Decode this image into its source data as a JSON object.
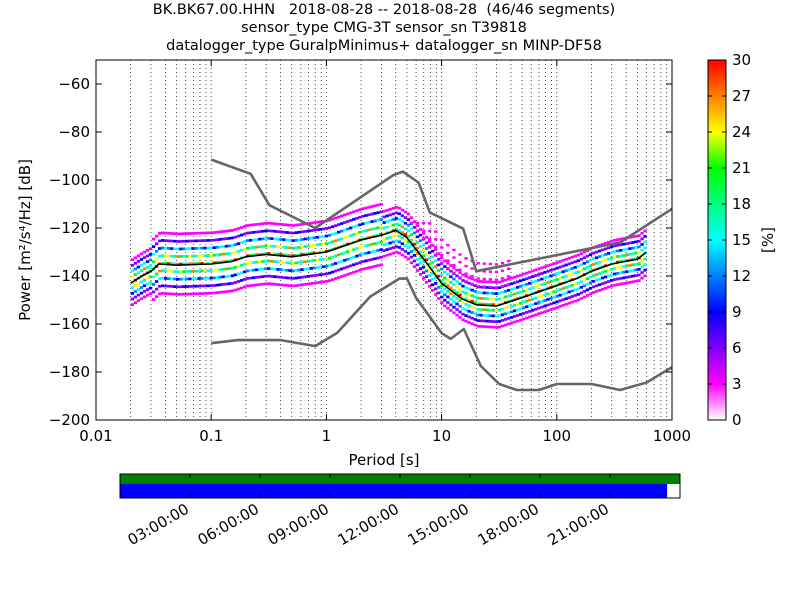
{
  "title_lines": [
    "BK.BK67.00.HHN   2018-08-28 -- 2018-08-28  (46/46 segments)",
    "sensor_type CMG-3T sensor_sn T39818",
    "datalogger_type GuralpMinimus+ datalogger_sn MINP-DF58"
  ],
  "chart_data": {
    "type": "heatmap",
    "xlabel": "Period [s]",
    "ylabel": "Power [m²/s⁴/Hz] [dB]",
    "x_scale": "log",
    "xlim": [
      0.01,
      1000
    ],
    "ylim": [
      -200,
      -50
    ],
    "x_ticks": [
      0.01,
      0.1,
      1,
      10,
      100,
      1000
    ],
    "x_tick_labels": [
      "0.01",
      "0.1",
      "1",
      "10",
      "100",
      "1000"
    ],
    "y_ticks": [
      -200,
      -180,
      -160,
      -140,
      -120,
      -100,
      -80,
      -60
    ],
    "y_tick_labels": [
      "−200",
      "−180",
      "−160",
      "−140",
      "−120",
      "−100",
      "−80",
      "−60"
    ],
    "grid": "dotted vertical",
    "colorbar": {
      "label": "[%]",
      "min": 0,
      "max": 30,
      "ticks": [
        0,
        3,
        6,
        9,
        12,
        15,
        18,
        21,
        24,
        27,
        30
      ],
      "colors": [
        "#ffffff",
        "#ff00ff",
        "#8000ff",
        "#0000ff",
        "#0080ff",
        "#00ffff",
        "#00ff80",
        "#00ff00",
        "#ffff00",
        "#ff8000",
        "#ff0000"
      ]
    },
    "series": [
      {
        "role": "new-high-noise-model",
        "color": "#666666",
        "points": [
          [
            0.1,
            -91.5
          ],
          [
            0.22,
            -97.4
          ],
          [
            0.32,
            -110.5
          ],
          [
            0.8,
            -120
          ],
          [
            3.8,
            -98
          ],
          [
            4.6,
            -96.5
          ],
          [
            6.3,
            -101
          ],
          [
            7.9,
            -113.5
          ],
          [
            15.4,
            -120.3
          ],
          [
            20,
            -138
          ],
          [
            354.8,
            -126
          ],
          [
            1000,
            -112
          ]
        ]
      },
      {
        "role": "new-low-noise-model",
        "color": "#666666",
        "points": [
          [
            0.1,
            -168
          ],
          [
            0.17,
            -166.7
          ],
          [
            0.4,
            -166.7
          ],
          [
            0.8,
            -169.2
          ],
          [
            1.24,
            -163.7
          ],
          [
            2.4,
            -148.6
          ],
          [
            4.3,
            -141.1
          ],
          [
            5,
            -141
          ],
          [
            6,
            -149
          ],
          [
            10,
            -163.8
          ],
          [
            12,
            -166.2
          ],
          [
            15.6,
            -162.1
          ],
          [
            21.9,
            -177.5
          ],
          [
            31.6,
            -185
          ],
          [
            45,
            -187.5
          ],
          [
            70,
            -187.5
          ],
          [
            100,
            -185
          ],
          [
            200,
            -185
          ],
          [
            354.8,
            -187.5
          ],
          [
            600,
            -184.4
          ],
          [
            1000,
            -178
          ]
        ]
      },
      {
        "role": "median-psd",
        "color": "#000000",
        "points": [
          [
            0.02,
            -143
          ],
          [
            0.025,
            -140
          ],
          [
            0.03,
            -138
          ],
          [
            0.035,
            -135
          ],
          [
            0.05,
            -135.5
          ],
          [
            0.1,
            -135
          ],
          [
            0.15,
            -134
          ],
          [
            0.2,
            -132
          ],
          [
            0.3,
            -131
          ],
          [
            0.5,
            -132
          ],
          [
            1,
            -130
          ],
          [
            2,
            -125
          ],
          [
            3,
            -123
          ],
          [
            4,
            -121
          ],
          [
            5,
            -124
          ],
          [
            7,
            -133
          ],
          [
            10,
            -143
          ],
          [
            15,
            -149.5
          ],
          [
            20,
            -152
          ],
          [
            30,
            -152.5
          ],
          [
            50,
            -149
          ],
          [
            100,
            -144
          ],
          [
            150,
            -141
          ],
          [
            200,
            -138
          ],
          [
            300,
            -135
          ],
          [
            500,
            -133
          ],
          [
            600,
            -130
          ]
        ]
      }
    ],
    "segment_bar": {
      "time_ticks": [
        "03:00:00",
        "06:00:00",
        "09:00:00",
        "12:00:00",
        "15:00:00",
        "18:00:00",
        "21:00:00"
      ],
      "used_fraction": 1.0,
      "coverage_fraction": 0.977,
      "used_color": "#008000",
      "coverage_color": "#0000ff"
    }
  }
}
